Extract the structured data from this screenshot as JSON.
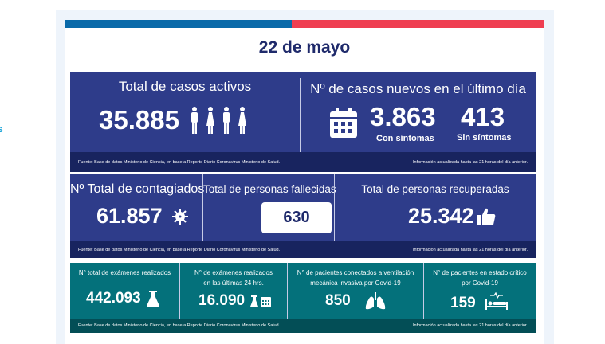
{
  "date_title": "22 de mayo",
  "colors": {
    "navy": "#2e3c8a",
    "navy_footer": "#18245f",
    "teal": "#04717b",
    "teal_footer": "#034e56",
    "bar_blue": "#0a6aa9",
    "bar_red": "#ef3e51"
  },
  "footer": {
    "source": "Fuente: Base de datos Ministerio de Ciencia, en base a Reporte Diario Coronavirus Ministerio de Salud.",
    "updated": "Información actualizada hasta las 21 horas  del día anterior."
  },
  "active": {
    "label": "Total de casos activos",
    "value": "35.885",
    "icon": "people-icon"
  },
  "new_cases": {
    "label": "Nº de casos nuevos en el último día",
    "icon": "calendar-icon",
    "with_symptoms": {
      "value": "3.863",
      "label": "Con síntomas"
    },
    "without_symptoms": {
      "value": "413",
      "label": "Sin síntomas"
    }
  },
  "total_infected": {
    "label": "Nº Total de contagiados",
    "value": "61.857",
    "icon": "virus-icon"
  },
  "deaths": {
    "label": "Total de personas fallecidas",
    "value": "630"
  },
  "recovered": {
    "label": "Total de personas recuperadas",
    "value": "25.342",
    "icon": "thumbs-up-icon"
  },
  "exams_total": {
    "label": "N° total de exámenes realizados",
    "value": "442.093",
    "icon": "flask-icon"
  },
  "exams_24h": {
    "label1": "N° de exámenes realizados",
    "label2": "en las últimas 24 hrs.",
    "value": "16.090",
    "icon": "flask-calendar-icon"
  },
  "ventilation": {
    "label1": "N° de pacientes conectados a ventilación",
    "label2": "mecánica invasiva por Covid-19",
    "value": "850",
    "icon": "lungs-icon"
  },
  "critical": {
    "label1": "N° de pacientes en estado crítico",
    "label2": "por Covid-19",
    "value": "159",
    "icon": "hospital-bed-icon"
  }
}
